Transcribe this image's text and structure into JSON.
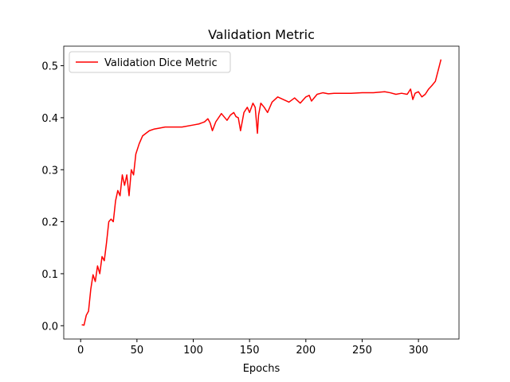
{
  "chart_data": {
    "type": "line",
    "title": "Validation Metric",
    "xlabel": "Epochs",
    "x": [
      1,
      3,
      5,
      7,
      9,
      11,
      13,
      15,
      17,
      19,
      21,
      23,
      25,
      27,
      29,
      31,
      33,
      35,
      37,
      39,
      41,
      43,
      45,
      47,
      49,
      52,
      55,
      58,
      61,
      65,
      70,
      75,
      80,
      90,
      100,
      105,
      110,
      113,
      115,
      117,
      120,
      125,
      130,
      133,
      136,
      138,
      140,
      142,
      145,
      148,
      150,
      153,
      155,
      157,
      158,
      160,
      163,
      166,
      170,
      175,
      180,
      185,
      190,
      195,
      200,
      203,
      205,
      210,
      215,
      220,
      225,
      230,
      240,
      250,
      260,
      270,
      275,
      280,
      285,
      290,
      293,
      295,
      297,
      300,
      303,
      306,
      309,
      312,
      315,
      318,
      320
    ],
    "series": [
      {
        "name": "Validation Dice Metric",
        "color": "#ff0000",
        "values": [
          0.002,
          0.001,
          0.02,
          0.028,
          0.07,
          0.098,
          0.085,
          0.115,
          0.1,
          0.133,
          0.125,
          0.16,
          0.2,
          0.205,
          0.2,
          0.24,
          0.26,
          0.25,
          0.29,
          0.27,
          0.29,
          0.25,
          0.3,
          0.29,
          0.33,
          0.35,
          0.365,
          0.37,
          0.375,
          0.378,
          0.38,
          0.382,
          0.382,
          0.382,
          0.386,
          0.388,
          0.392,
          0.398,
          0.39,
          0.375,
          0.392,
          0.408,
          0.395,
          0.405,
          0.41,
          0.402,
          0.4,
          0.375,
          0.41,
          0.42,
          0.41,
          0.428,
          0.42,
          0.37,
          0.405,
          0.428,
          0.42,
          0.41,
          0.43,
          0.44,
          0.435,
          0.43,
          0.438,
          0.428,
          0.44,
          0.443,
          0.432,
          0.445,
          0.448,
          0.446,
          0.447,
          0.447,
          0.447,
          0.448,
          0.448,
          0.45,
          0.448,
          0.445,
          0.447,
          0.445,
          0.455,
          0.435,
          0.447,
          0.45,
          0.44,
          0.445,
          0.455,
          0.462,
          0.47,
          0.495,
          0.512
        ]
      }
    ],
    "xlim": [
      -15,
      336
    ],
    "ylim": [
      -0.0256,
      0.5376
    ],
    "xticks": [
      0,
      50,
      100,
      150,
      200,
      250,
      300
    ],
    "yticks": [
      {
        "value": 0,
        "label": "0.0"
      },
      0.1,
      0.2,
      0.3,
      0.4,
      0.5
    ],
    "legend": "upper left"
  }
}
